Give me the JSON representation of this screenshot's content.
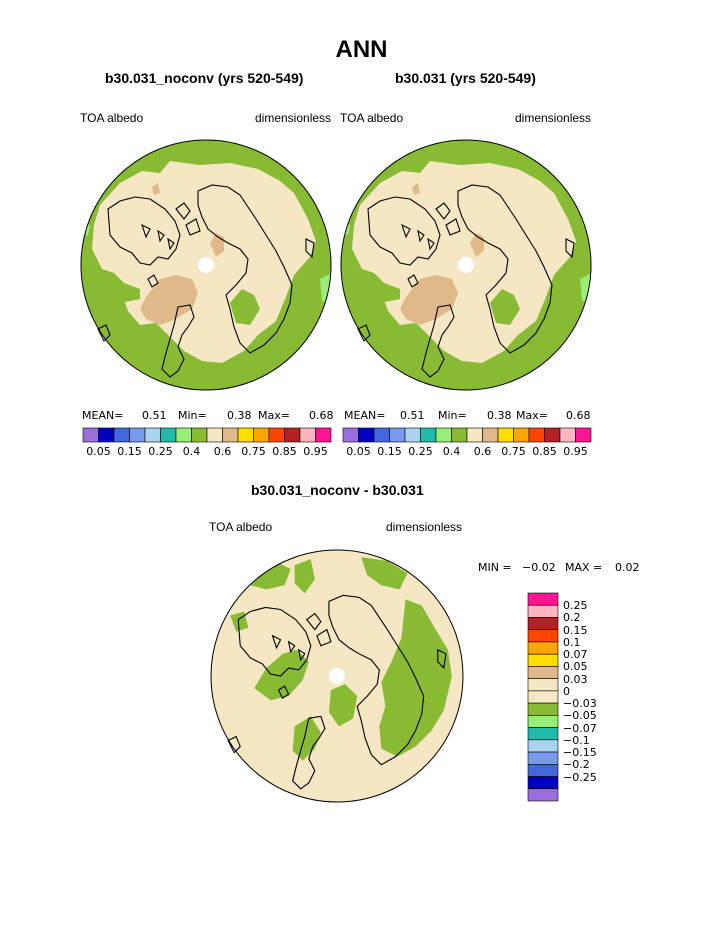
{
  "figure": {
    "title": "ANN"
  },
  "colors": {
    "c1": "#9a6fdc",
    "c2": "#0000c0",
    "c3": "#4466dd",
    "c4": "#7799ee",
    "c5": "#aad4ee",
    "c6": "#22bbaa",
    "c7": "#99ee77",
    "c8": "#88bb33",
    "c9": "#f5e6c4",
    "c10": "#e0b98a",
    "c11": "#ffdd00",
    "c12": "#ffa500",
    "c13": "#ff4500",
    "c14": "#b22222",
    "c15": "#ffb6c1",
    "c16": "#ff1493",
    "land": "#000000",
    "pole": "#ffffff"
  },
  "panels": [
    {
      "title": "b30.031_noconv (yrs 520-549)",
      "variable": "TOA albedo",
      "units": "dimensionless",
      "stats": {
        "mean_label": "MEAN=",
        "mean": "0.51",
        "min_label": "Min=",
        "min": "0.38",
        "max_label": "Max=",
        "max": "0.68"
      }
    },
    {
      "title": "b30.031 (yrs 520-549)",
      "variable": "TOA albedo",
      "units": "dimensionless",
      "stats": {
        "mean_label": "MEAN=",
        "mean": "0.51",
        "min_label": "Min=",
        "min": "0.38",
        "max_label": "Max=",
        "max": "0.68"
      }
    }
  ],
  "colorbar": {
    "levels": [
      "0.05",
      "0.15",
      "0.25",
      "0.4",
      "0.6",
      "0.75",
      "0.85",
      "0.95"
    ]
  },
  "difference": {
    "title": "b30.031_noconv - b30.031",
    "variable": "TOA albedo",
    "units": "dimensionless",
    "stats": {
      "min_label": "MIN =",
      "min": "−0.02",
      "max_label": "MAX =",
      "max": "0.02"
    },
    "colorbar_levels": [
      "0.25",
      "0.2",
      "0.15",
      "0.1",
      "0.07",
      "0.05",
      "0.03",
      "0",
      "−0.03",
      "−0.05",
      "−0.07",
      "−0.1",
      "−0.15",
      "−0.2",
      "−0.25"
    ]
  }
}
